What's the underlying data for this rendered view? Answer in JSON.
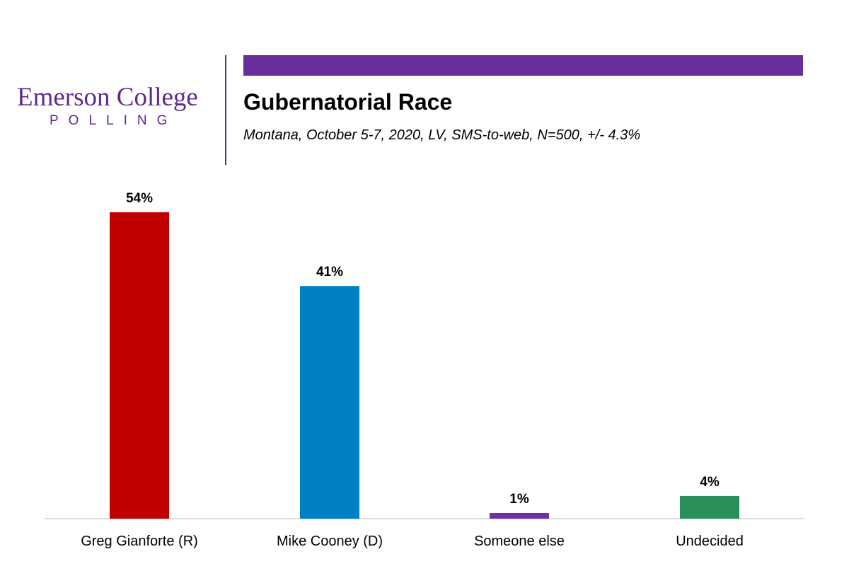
{
  "logo": {
    "line1": "Emerson College",
    "line2": "POLLING"
  },
  "header": {
    "title": "Gubernatorial Race",
    "subtitle": "Montana, October 5-7, 2020, LV, SMS-to-web, N=500, +/-  4.3%",
    "accent_color": "#662d9b"
  },
  "chart_data": {
    "type": "bar",
    "categories": [
      "Greg Gianforte (R)",
      "Mike Cooney (D)",
      "Someone else",
      "Undecided"
    ],
    "values": [
      54,
      41,
      1,
      4
    ],
    "value_labels": [
      "54%",
      "41%",
      "1%",
      "4%"
    ],
    "colors": [
      "#c00000",
      "#0080c4",
      "#7030a0",
      "#2a8f5a"
    ],
    "title": "",
    "xlabel": "",
    "ylabel": "",
    "ylim": [
      0,
      54
    ],
    "grid": false,
    "legend": "none"
  }
}
